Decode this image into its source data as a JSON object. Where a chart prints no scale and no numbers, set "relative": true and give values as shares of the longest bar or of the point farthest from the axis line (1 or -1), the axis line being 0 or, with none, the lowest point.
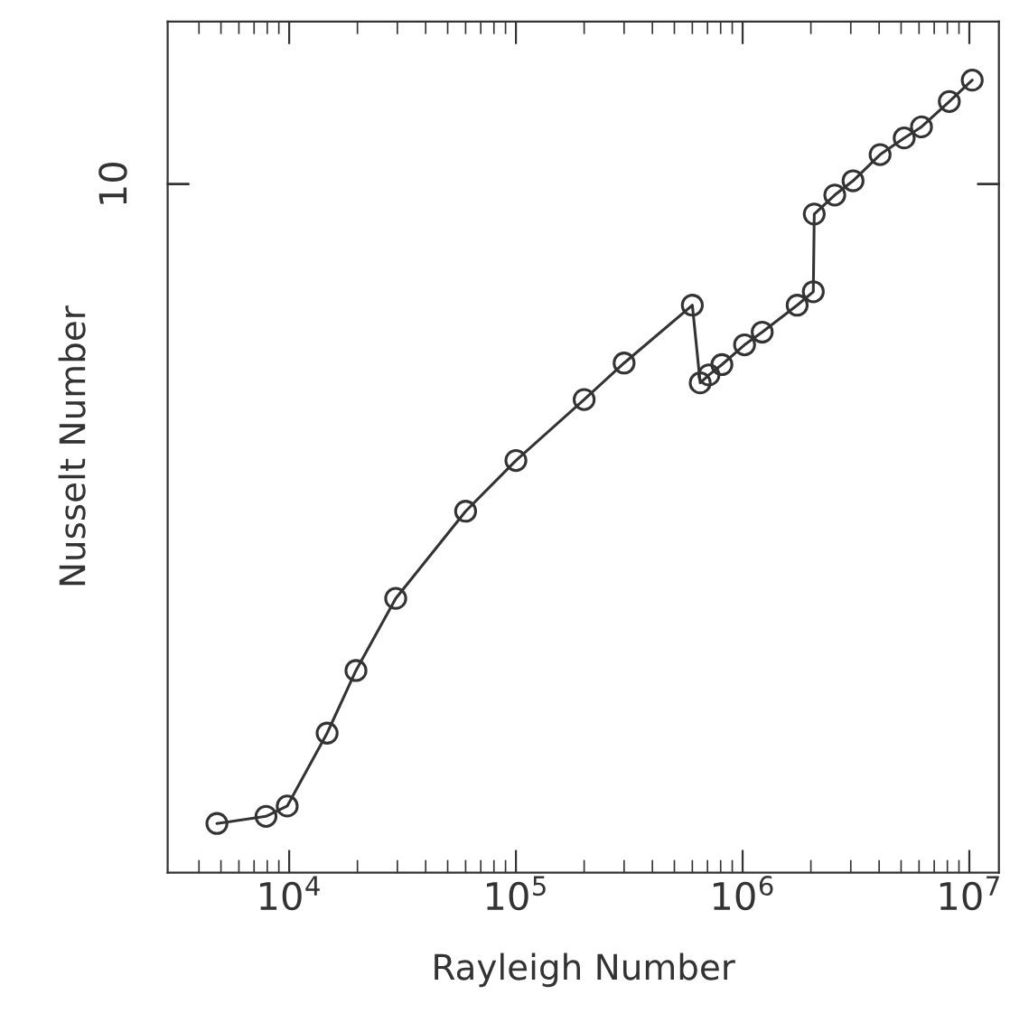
{
  "chart_data": {
    "type": "line",
    "xlabel": "Rayleigh Number",
    "ylabel": "Nusselt Number",
    "log": "x",
    "relative": true,
    "marker": "circle",
    "line_style": "solid",
    "grid": false,
    "legend": false,
    "annotations": [
      "10"
    ],
    "x": [
      4800,
      7900,
      9800,
      14700,
      19700,
      29500,
      60000,
      100000,
      200000,
      300000,
      600000,
      650000,
      710000,
      810000,
      1020000,
      1220000,
      1740000,
      2050000,
      2070000,
      2550000,
      3070000,
      4040000,
      5160000,
      6150000,
      8160000,
      10300000
    ],
    "series": [
      {
        "color": "#333333",
        "values": [
          0.062,
          0.071,
          0.084,
          0.176,
          0.255,
          0.346,
          0.456,
          0.52,
          0.597,
          0.643,
          0.716,
          0.618,
          0.628,
          0.641,
          0.666,
          0.682,
          0.716,
          0.733,
          0.831,
          0.855,
          0.873,
          0.906,
          0.927,
          0.941,
          0.973,
          1.0
        ]
      }
    ],
    "xlim": [
      2910,
      13500000
    ],
    "xticks": [
      {
        "value": 4000,
        "label": null
      },
      {
        "value": 5000,
        "label": null
      },
      {
        "value": 6000,
        "label": null
      },
      {
        "value": 7000,
        "label": null
      },
      {
        "value": 8000,
        "label": null
      },
      {
        "value": 9000,
        "label": null
      },
      {
        "value": 10000,
        "label": "10$^{4}$"
      },
      {
        "value": 20000,
        "label": null
      },
      {
        "value": 30000,
        "label": null
      },
      {
        "value": 40000,
        "label": null
      },
      {
        "value": 50000,
        "label": null
      },
      {
        "value": 60000,
        "label": null
      },
      {
        "value": 70000,
        "label": null
      },
      {
        "value": 80000,
        "label": null
      },
      {
        "value": 90000,
        "label": null
      },
      {
        "value": 100000,
        "label": "10$^{5}$"
      },
      {
        "value": 200000,
        "label": null
      },
      {
        "value": 300000,
        "label": null
      },
      {
        "value": 400000,
        "label": null
      },
      {
        "value": 500000,
        "label": null
      },
      {
        "value": 600000,
        "label": null
      },
      {
        "value": 700000,
        "label": null
      },
      {
        "value": 800000,
        "label": null
      },
      {
        "value": 900000,
        "label": null
      },
      {
        "value": 1000000,
        "label": "10$^{6}$"
      },
      {
        "value": 2000000,
        "label": null
      },
      {
        "value": 3000000,
        "label": null
      },
      {
        "value": 4000000,
        "label": null
      },
      {
        "value": 5000000,
        "label": null
      },
      {
        "value": 6000000,
        "label": null
      },
      {
        "value": 7000000,
        "label": null
      },
      {
        "value": 8000000,
        "label": null
      },
      {
        "value": 9000000,
        "label": null
      },
      {
        "value": 10000000,
        "label": "10$^{7}$"
      }
    ]
  }
}
